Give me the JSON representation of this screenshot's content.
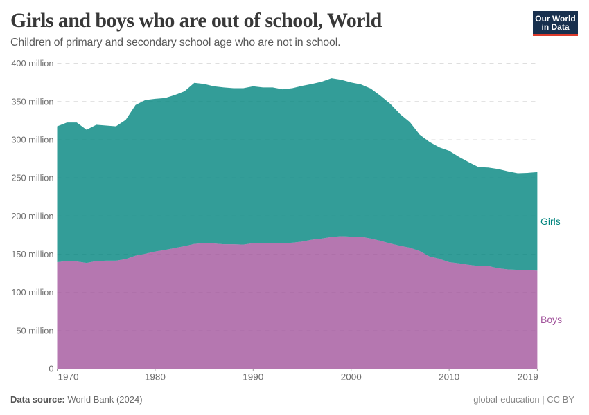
{
  "header": {
    "title": "Girls and boys who are out of school, World",
    "subtitle": "Children of primary and secondary school age who are not in school."
  },
  "logo": {
    "line1": "Our World",
    "line2": "in Data",
    "background_color": "#18304e",
    "bar_color": "#dc3a2b",
    "text_color": "#ffffff"
  },
  "chart_data": {
    "type": "area",
    "stacked": true,
    "title": "Girls and boys who are out of school, World",
    "xlabel": "",
    "ylabel": "",
    "x": [
      1970,
      1971,
      1972,
      1973,
      1974,
      1975,
      1976,
      1977,
      1978,
      1979,
      1980,
      1981,
      1982,
      1983,
      1984,
      1985,
      1986,
      1987,
      1988,
      1989,
      1990,
      1991,
      1992,
      1993,
      1994,
      1995,
      1996,
      1997,
      1998,
      1999,
      2000,
      2001,
      2002,
      2003,
      2004,
      2005,
      2006,
      2007,
      2008,
      2009,
      2010,
      2011,
      2012,
      2013,
      2014,
      2015,
      2016,
      2017,
      2018,
      2019
    ],
    "unit": "million",
    "series": [
      {
        "name": "Boys",
        "color": "#a2559c",
        "label_color": "#a2559c",
        "values": [
          139.5,
          141,
          140.5,
          138.5,
          141,
          141.5,
          141.5,
          143.5,
          148,
          150.5,
          153.5,
          155.5,
          158,
          160.5,
          163.5,
          164.5,
          164,
          163,
          163,
          162.5,
          164.5,
          164,
          164,
          164.5,
          165,
          166.5,
          169,
          170.5,
          172.5,
          173.5,
          173,
          173,
          170.5,
          167.5,
          164,
          161,
          158.5,
          154,
          147,
          144,
          139.5,
          138,
          136,
          134.5,
          134.5,
          131.5,
          130,
          129.5,
          129,
          128.5
        ]
      },
      {
        "name": "Girls",
        "color": "#00847e",
        "label_color": "#00847e",
        "values": [
          178,
          181.5,
          182,
          174.5,
          178.5,
          177,
          176,
          182.5,
          197.5,
          201.5,
          200,
          199,
          200.5,
          203,
          211,
          208.5,
          206,
          205.5,
          204.5,
          205,
          205.5,
          204.5,
          204.5,
          201.5,
          202.5,
          204,
          204,
          205.5,
          208,
          205,
          202,
          199.5,
          196.5,
          190,
          183,
          172.5,
          164.5,
          152.5,
          150,
          146,
          146,
          139.5,
          134.5,
          129.5,
          129,
          130,
          128.5,
          126.5,
          127.5,
          129
        ]
      }
    ],
    "fill_opacity": 0.8,
    "xlim": [
      1970,
      2019
    ],
    "ylim": [
      0,
      400
    ],
    "grid": true,
    "gridline_color": "#dadada",
    "y_ticks": [
      {
        "value": 0,
        "label": "0"
      },
      {
        "value": 50,
        "label": "50 million"
      },
      {
        "value": 100,
        "label": "100 million"
      },
      {
        "value": 150,
        "label": "150 million"
      },
      {
        "value": 200,
        "label": "200 million"
      },
      {
        "value": 250,
        "label": "250 million"
      },
      {
        "value": 300,
        "label": "300 million"
      },
      {
        "value": 350,
        "label": "350 million"
      },
      {
        "value": 400,
        "label": "400 million"
      }
    ],
    "x_ticks": [
      {
        "value": 1970,
        "label": "1970"
      },
      {
        "value": 1980,
        "label": "1980"
      },
      {
        "value": 1990,
        "label": "1990"
      },
      {
        "value": 2000,
        "label": "2000"
      },
      {
        "value": 2010,
        "label": "2010"
      },
      {
        "value": 2019,
        "label": "2019"
      }
    ],
    "tick_label_color": "#6e6e6e",
    "legend_position": "right-of-plot"
  },
  "footer": {
    "source_label": "Data source:",
    "source_value": "World Bank (2024)",
    "slug": "global-education",
    "separator": "|",
    "license": "CC BY"
  }
}
